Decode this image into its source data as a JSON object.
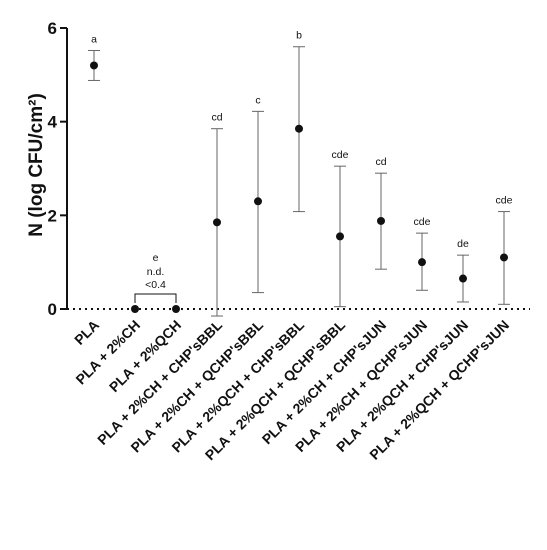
{
  "chart_data": {
    "type": "scatter",
    "ylabel": "N (log CFU/cm²)",
    "ylim": [
      0,
      6
    ],
    "yticks": [
      0,
      2,
      4,
      6
    ],
    "reference_line_y": 0,
    "categories": [
      "PLA",
      "PLA + 2%CH",
      "PLA + 2%QCH",
      "PLA + 2%CH + CHP'sBBL",
      "PLA + 2%CH + QCHP'sBBL",
      "PLA + 2%QCH + CHP'sBBL",
      "PLA + 2%QCH + QCHP'sBBL",
      "PLA + 2%CH + CHP'sJUN",
      "PLA + 2%CH + QCHP'sJUN",
      "PLA + 2%QCH + CHP'sJUN",
      "PLA + 2%QCH + QCHP'sJUN"
    ],
    "values": [
      5.2,
      0,
      0,
      1.85,
      2.3,
      3.85,
      1.55,
      1.88,
      1.0,
      0.65,
      1.1
    ],
    "error_low": [
      4.88,
      null,
      null,
      -0.15,
      0.35,
      2.08,
      0.05,
      0.85,
      0.4,
      0.15,
      0.1
    ],
    "error_high": [
      5.52,
      null,
      null,
      3.85,
      4.22,
      5.6,
      3.05,
      2.9,
      1.62,
      1.15,
      2.08
    ],
    "significance_letters": [
      "a",
      "e",
      "",
      "cd",
      "c",
      "b",
      "cde",
      "cd",
      "cde",
      "de",
      "cde"
    ],
    "annotations": [
      "n.d.",
      "<0.4"
    ]
  }
}
